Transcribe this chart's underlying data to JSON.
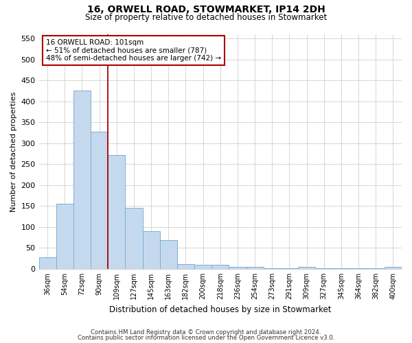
{
  "title1": "16, ORWELL ROAD, STOWMARKET, IP14 2DH",
  "title2": "Size of property relative to detached houses in Stowmarket",
  "xlabel": "Distribution of detached houses by size in Stowmarket",
  "ylabel": "Number of detached properties",
  "categories": [
    "36sqm",
    "54sqm",
    "72sqm",
    "90sqm",
    "109sqm",
    "127sqm",
    "145sqm",
    "163sqm",
    "182sqm",
    "200sqm",
    "218sqm",
    "236sqm",
    "254sqm",
    "273sqm",
    "291sqm",
    "309sqm",
    "327sqm",
    "345sqm",
    "364sqm",
    "382sqm",
    "400sqm"
  ],
  "values": [
    27,
    155,
    425,
    327,
    272,
    145,
    90,
    68,
    12,
    10,
    10,
    4,
    4,
    2,
    2,
    5,
    1,
    1,
    1,
    1,
    4
  ],
  "bar_color": "#c5d9ee",
  "bar_edge_color": "#7aafd4",
  "vline_x": 3.5,
  "vline_color": "#aa0000",
  "annotation_text": "16 ORWELL ROAD: 101sqm\n← 51% of detached houses are smaller (787)\n48% of semi-detached houses are larger (742) →",
  "annotation_box_color": "#ffffff",
  "annotation_box_edge": "#aa0000",
  "footer1": "Contains HM Land Registry data © Crown copyright and database right 2024.",
  "footer2": "Contains public sector information licensed under the Open Government Licence v3.0.",
  "ylim": [
    0,
    560
  ],
  "yticks": [
    0,
    50,
    100,
    150,
    200,
    250,
    300,
    350,
    400,
    450,
    500,
    550
  ],
  "background_color": "#ffffff",
  "grid_color": "#d0d0d0"
}
